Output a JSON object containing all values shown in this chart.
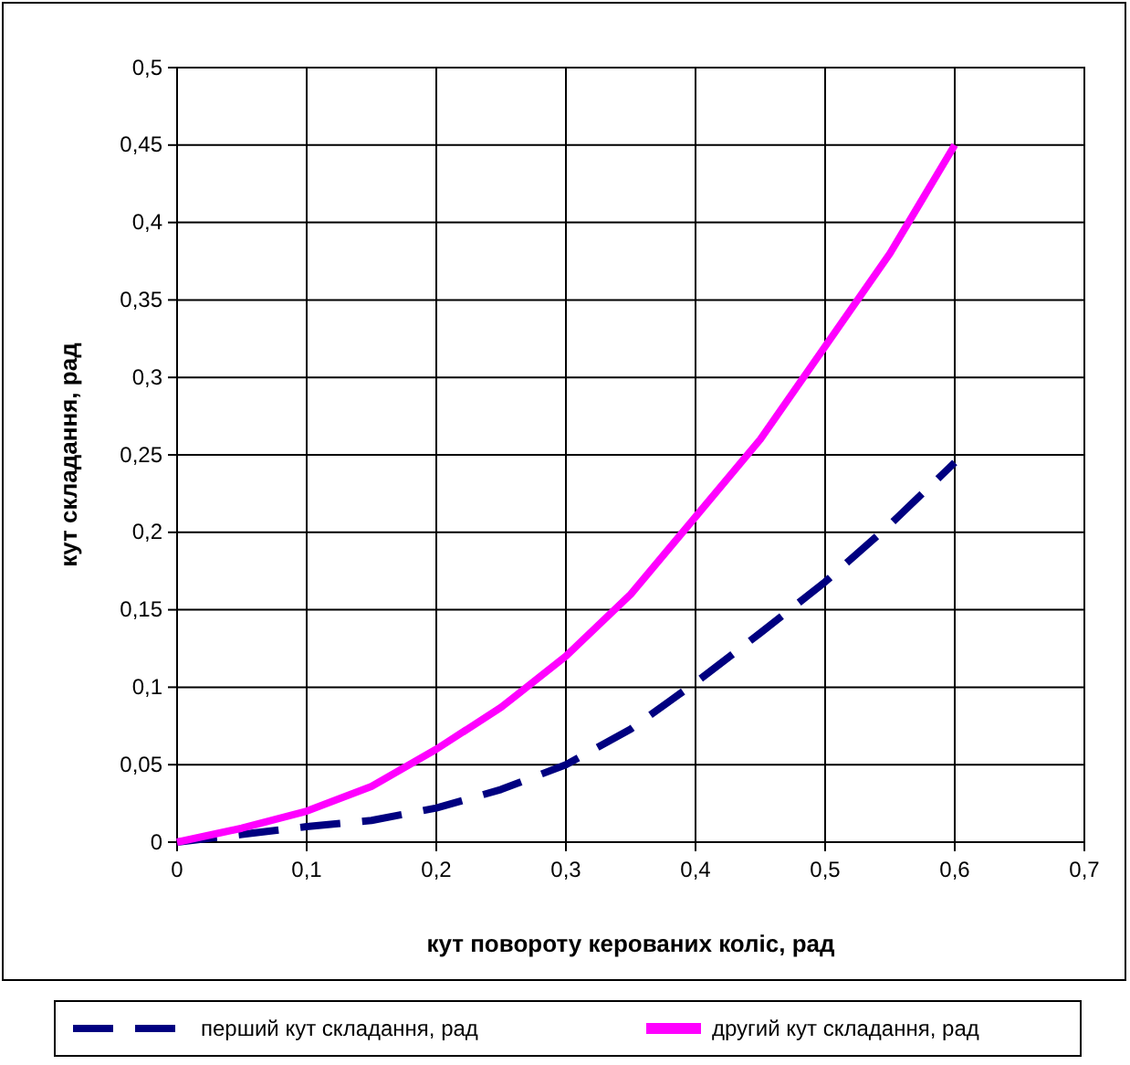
{
  "chart_data": {
    "type": "line",
    "xlabel": "кут повороту керованих коліс, рад",
    "ylabel": "кут складання, рад",
    "xlim": [
      0,
      0.7
    ],
    "xticks": [
      {
        "value": 0,
        "label": "0"
      },
      {
        "value": 0.1,
        "label": "0,1"
      },
      {
        "value": 0.2,
        "label": "0,2"
      },
      {
        "value": 0.3,
        "label": "0,3"
      },
      {
        "value": 0.4,
        "label": "0,4"
      },
      {
        "value": 0.5,
        "label": "0,5"
      },
      {
        "value": 0.6,
        "label": "0,6"
      },
      {
        "value": 0.7,
        "label": "0,7"
      }
    ],
    "ylim": [
      0,
      0.5
    ],
    "yticks": [
      {
        "value": 0,
        "label": "0"
      },
      {
        "value": 0.05,
        "label": "0,05"
      },
      {
        "value": 0.1,
        "label": "0,1"
      },
      {
        "value": 0.15,
        "label": "0,15"
      },
      {
        "value": 0.2,
        "label": "0,2"
      },
      {
        "value": 0.25,
        "label": "0,25"
      },
      {
        "value": 0.3,
        "label": "0,3"
      },
      {
        "value": 0.35,
        "label": "0,35"
      },
      {
        "value": 0.4,
        "label": "0,4"
      },
      {
        "value": 0.45,
        "label": "0,45"
      },
      {
        "value": 0.5,
        "label": "0,5"
      }
    ],
    "x": [
      0,
      0.05,
      0.1,
      0.15,
      0.2,
      0.25,
      0.3,
      0.35,
      0.4,
      0.45,
      0.5,
      0.55,
      0.6
    ],
    "series": [
      {
        "name": "перший кут складання, рад",
        "color": "#000080",
        "line_style": "dashed",
        "values": [
          0,
          0.005,
          0.01,
          0.014,
          0.022,
          0.034,
          0.05,
          0.073,
          0.103,
          0.135,
          0.168,
          0.205,
          0.245
        ]
      },
      {
        "name": "другий кут складання, рад",
        "color": "#ff00ff",
        "line_style": "solid",
        "values": [
          0,
          0.009,
          0.02,
          0.036,
          0.06,
          0.087,
          0.12,
          0.16,
          0.21,
          0.26,
          0.32,
          0.38,
          0.45
        ]
      }
    ],
    "grid": true,
    "legend": "bottom",
    "marker": "none"
  }
}
